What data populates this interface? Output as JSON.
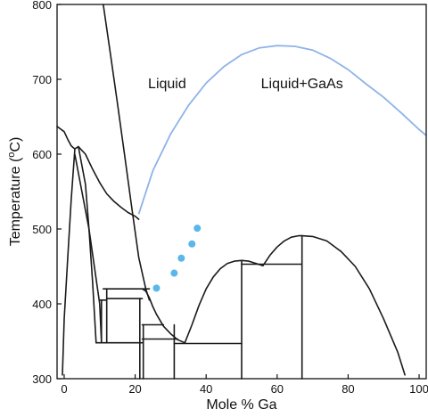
{
  "chart_data": {
    "type": "line",
    "title": "",
    "xlabel": "Mole % Ga",
    "ylabel_prefix": "Temperature (",
    "ylabel_sup": "o",
    "ylabel_suffix": "C)",
    "xlim": [
      -2,
      102
    ],
    "ylim": [
      300,
      800
    ],
    "xticks": [
      0,
      20,
      40,
      60,
      80,
      100
    ],
    "yticks": [
      300,
      400,
      500,
      600,
      700,
      800
    ],
    "grid": false,
    "annotations": [
      {
        "text": "Liquid",
        "x": 29,
        "y": 695
      },
      {
        "text": "Liquid+GaAs",
        "x": 67,
        "y": 695
      }
    ],
    "colors": {
      "phase_lines": "#1a1a1a",
      "liquidus": "#8fb3e8",
      "points": "#5ab7ea"
    },
    "series": [
      {
        "id": "gaas_liquidus",
        "style": "liquidus",
        "x": [
          21,
          25,
          30,
          35,
          40,
          45,
          50,
          55,
          60,
          65,
          70,
          75,
          80,
          85,
          90,
          95,
          100,
          102
        ],
        "y": [
          520,
          578,
          627,
          665,
          695,
          717,
          733,
          742,
          745,
          744,
          739,
          728,
          713,
          694,
          676,
          655,
          633,
          625
        ]
      },
      {
        "id": "liquidus_steep",
        "style": "phase",
        "x": [
          11,
          13,
          15,
          17,
          19,
          21,
          23,
          24
        ],
        "y": [
          800,
          735,
          668,
          600,
          530,
          462,
          420,
          405
        ]
      },
      {
        "id": "left_boundary",
        "style": "phase",
        "x": [
          -2,
          0,
          1,
          2,
          3,
          4
        ],
        "y": [
          637,
          630,
          620,
          611,
          607,
          610
        ]
      },
      {
        "id": "upper_dome",
        "style": "phase",
        "x": [
          4,
          6,
          8,
          10,
          12,
          14,
          16,
          18,
          20,
          21
        ],
        "y": [
          610,
          600,
          580,
          562,
          547,
          537,
          529,
          522,
          517,
          513
        ]
      },
      {
        "id": "left_phase_right",
        "style": "phase",
        "x": [
          4,
          6,
          7,
          8,
          9
        ],
        "y": [
          610,
          560,
          500,
          430,
          348
        ]
      },
      {
        "id": "left_phase_left",
        "style": "phase",
        "x": [
          3,
          2,
          1,
          0,
          -0.5
        ],
        "y": [
          606,
          540,
          460,
          380,
          305
        ]
      },
      {
        "id": "left_phase_inner",
        "style": "phase",
        "x": [
          3,
          7,
          10,
          10.5
        ],
        "y": [
          600,
          500,
          400,
          348
        ]
      },
      {
        "id": "liquidus_lower",
        "style": "phase",
        "x": [
          22,
          23,
          24,
          25,
          26,
          28,
          30,
          32,
          34
        ],
        "y": [
          420,
          417,
          408,
          396,
          386,
          370,
          360,
          352,
          348
        ]
      },
      {
        "id": "dome_center",
        "style": "phase",
        "x": [
          34,
          36,
          38,
          40,
          42,
          44,
          46,
          48,
          50,
          52,
          54,
          56
        ],
        "y": [
          348,
          372,
          398,
          420,
          436,
          447,
          454,
          457,
          458,
          457,
          454,
          451
        ]
      },
      {
        "id": "dome_right",
        "style": "phase",
        "x": [
          56,
          58,
          60,
          62,
          64,
          66,
          67,
          70,
          74,
          78,
          82,
          86,
          90,
          94,
          96
        ],
        "y": [
          451,
          465,
          476,
          484,
          489,
          491,
          491,
          490,
          484,
          470,
          450,
          420,
          380,
          335,
          305
        ]
      },
      {
        "id": "tie_420",
        "style": "phase",
        "x": [
          11,
          24
        ],
        "y": [
          420,
          420
        ]
      },
      {
        "id": "tie_410",
        "style": "phase",
        "x": [
          12,
          22
        ],
        "y": [
          407,
          407
        ]
      },
      {
        "id": "tie_405_left",
        "style": "phase",
        "x": [
          10,
          12
        ],
        "y": [
          405,
          405
        ]
      },
      {
        "id": "tie_372",
        "style": "phase",
        "x": [
          22,
          28
        ],
        "y": [
          372,
          372
        ]
      },
      {
        "id": "tie_353",
        "style": "phase",
        "x": [
          22,
          32
        ],
        "y": [
          353,
          353
        ]
      },
      {
        "id": "tie_348_left",
        "style": "phase",
        "x": [
          9,
          22
        ],
        "y": [
          348,
          348
        ]
      },
      {
        "id": "tie_348_right",
        "style": "phase",
        "x": [
          31,
          50
        ],
        "y": [
          347,
          347
        ]
      },
      {
        "id": "tie_453",
        "style": "phase",
        "x": [
          50,
          67
        ],
        "y": [
          453,
          453
        ]
      },
      {
        "id": "v_10",
        "style": "phase",
        "x": [
          10.5,
          10.5
        ],
        "y": [
          405,
          348
        ]
      },
      {
        "id": "v_12",
        "style": "phase",
        "x": [
          12,
          12
        ],
        "y": [
          420,
          348
        ]
      },
      {
        "id": "v_21",
        "style": "phase",
        "x": [
          21.3,
          21.3
        ],
        "y": [
          407,
          300
        ]
      },
      {
        "id": "v_22",
        "style": "phase",
        "x": [
          22.3,
          22.3
        ],
        "y": [
          372,
          300
        ]
      },
      {
        "id": "v_31",
        "style": "phase",
        "x": [
          31,
          31
        ],
        "y": [
          372,
          300
        ]
      },
      {
        "id": "v_50",
        "style": "phase",
        "x": [
          50,
          50
        ],
        "y": [
          458,
          300
        ]
      },
      {
        "id": "v_67",
        "style": "phase",
        "x": [
          67,
          67
        ],
        "y": [
          491,
          300
        ]
      }
    ],
    "points": {
      "x": [
        26,
        31,
        33,
        36,
        37.5
      ],
      "y": [
        421,
        441,
        461,
        480,
        501
      ]
    }
  }
}
